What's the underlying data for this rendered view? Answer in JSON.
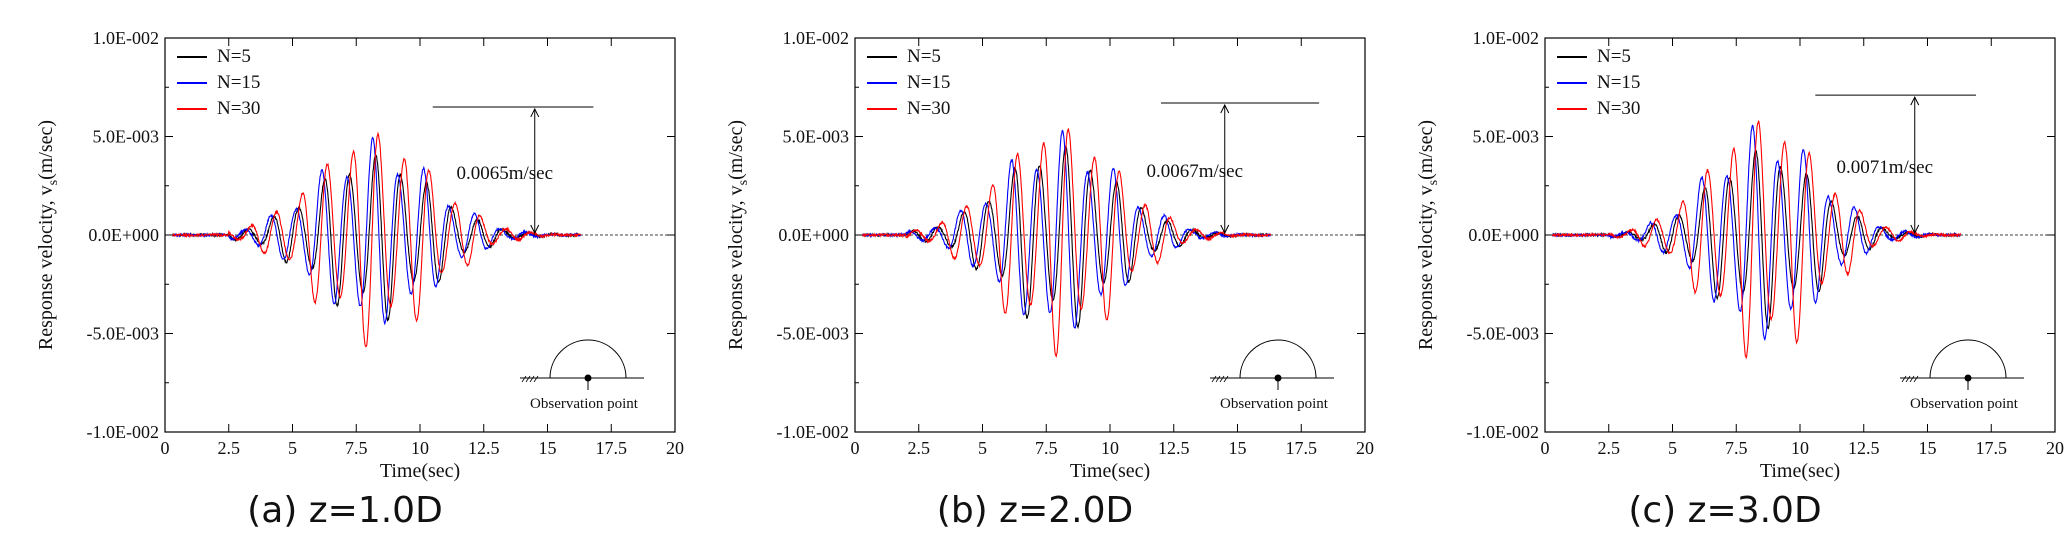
{
  "chart_data": [
    {
      "type": "line",
      "panel_caption": "(a) z=1.0D",
      "xlabel": "Time(sec)",
      "ylabel": "Response velocity, v",
      "ylabel_sub": "s",
      "ylabel_unit": "(m/sec)",
      "xlim": [
        0,
        20
      ],
      "ylim": [
        -0.01,
        0.01
      ],
      "x_ticks": [
        "0",
        "2.5",
        "5",
        "7.5",
        "10",
        "12.5",
        "15",
        "17.5",
        "20"
      ],
      "y_ticks": [
        "-1.0E-002",
        "-5.0E-003",
        "0.0E+000",
        "5.0E-003",
        "1.0E-002"
      ],
      "legend_position": "top-left",
      "series": [
        {
          "name": "N=5",
          "color": "#000000",
          "peak": 0.0045,
          "offset": 0.0
        },
        {
          "name": "N=15",
          "color": "#0000ff",
          "peak": 0.005,
          "offset": 0.11
        },
        {
          "name": "N=30",
          "color": "#ff0000",
          "peak": 0.0058,
          "offset": -0.12
        }
      ],
      "signal": {
        "start": 2.5,
        "end": 16.2,
        "center": 8.2,
        "width": 3.2,
        "frequency": 1.0
      },
      "max_annotation": {
        "text": "0.0065m/sec",
        "value": 0.0065,
        "x_from": 10.5,
        "x_to": 16.8
      },
      "inset_label": "Observation point",
      "inset_position": "bottom-right"
    },
    {
      "type": "line",
      "panel_caption": "(b) z=2.0D",
      "xlabel": "Time(sec)",
      "ylabel": "Response velocity, v",
      "ylabel_sub": "s",
      "ylabel_unit": "(m/sec)",
      "xlim": [
        0,
        20
      ],
      "ylim": [
        -0.01,
        0.01
      ],
      "x_ticks": [
        "0",
        "2.5",
        "5",
        "7.5",
        "10",
        "12.5",
        "15",
        "17.5",
        "20"
      ],
      "y_ticks": [
        "-1.0E-002",
        "-5.0E-003",
        "0.0E+000",
        "5.0E-003",
        "1.0E-002"
      ],
      "legend_position": "top-left",
      "series": [
        {
          "name": "N=5",
          "color": "#000000",
          "peak": 0.005,
          "offset": 0.0
        },
        {
          "name": "N=15",
          "color": "#0000ff",
          "peak": 0.0054,
          "offset": 0.12
        },
        {
          "name": "N=30",
          "color": "#ff0000",
          "peak": 0.0062,
          "offset": -0.13
        }
      ],
      "signal": {
        "start": 2.0,
        "end": 16.0,
        "center": 8.0,
        "width": 3.2,
        "frequency": 1.0
      },
      "max_annotation": {
        "text": "0.0067m/sec",
        "value": 0.0067,
        "x_from": 12.0,
        "x_to": 18.2
      },
      "inset_label": "Observation point",
      "inset_position": "bottom-right"
    },
    {
      "type": "line",
      "panel_caption": "(c) z=3.0D",
      "xlabel": "Time(sec)",
      "ylabel": "Response velocity, v",
      "ylabel_sub": "s",
      "ylabel_unit": "(m/sec)",
      "xlim": [
        0,
        20
      ],
      "ylim": [
        -0.01,
        0.01
      ],
      "x_ticks": [
        "0",
        "2.5",
        "5",
        "7.5",
        "10",
        "12.5",
        "15",
        "17.5",
        "20"
      ],
      "y_ticks": [
        "-1.0E-002",
        "-5.0E-003",
        "0.0E+000",
        "5.0E-003",
        "1.0E-002"
      ],
      "legend_position": "top-left",
      "series": [
        {
          "name": "N=5",
          "color": "#000000",
          "peak": 0.0048,
          "offset": 0.0
        },
        {
          "name": "N=15",
          "color": "#0000ff",
          "peak": 0.0058,
          "offset": 0.12
        },
        {
          "name": "N=30",
          "color": "#ff0000",
          "peak": 0.0066,
          "offset": -0.13
        }
      ],
      "signal": {
        "start": 2.5,
        "end": 16.5,
        "center": 8.6,
        "width": 3.0,
        "frequency": 1.0
      },
      "max_annotation": {
        "text": "0.0071m/sec",
        "value": 0.0071,
        "x_from": 10.6,
        "x_to": 16.9
      },
      "inset_label": "Observation point",
      "inset_position": "bottom-right"
    }
  ]
}
